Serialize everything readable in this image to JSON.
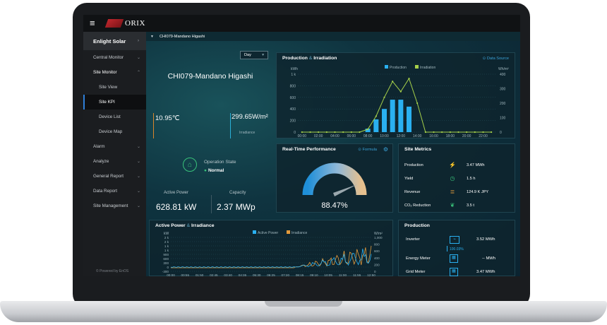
{
  "brand": {
    "name": "ORIX"
  },
  "sidebar": {
    "header": "Enlight Solar",
    "items": [
      {
        "label": "Central Monitor"
      },
      {
        "label": "Site Monitor"
      },
      {
        "label": "Site View"
      },
      {
        "label": "Site KPI"
      },
      {
        "label": "Device List"
      },
      {
        "label": "Device Map"
      },
      {
        "label": "Alarm"
      },
      {
        "label": "Analyze"
      },
      {
        "label": "General Report"
      },
      {
        "label": "Data Report"
      },
      {
        "label": "Site Management"
      }
    ],
    "footer": "© Powered by EnOS"
  },
  "breadcrumb": "CHI079-Mandano Higashi",
  "period": "Day",
  "site": {
    "name": "CHI079-Mandano Higashi",
    "temperature": "10.95℃",
    "irradiance": "299.65W/m²",
    "irradiance_label": "Irradiance",
    "operation_label": "Operation State",
    "operation_status": "Normal",
    "active_power_label": "Active Power",
    "active_power": "628.81 kW",
    "capacity_label": "Capacity",
    "capacity": "2.37 MWp"
  },
  "production_irradiation": {
    "title": "Production",
    "amp": "&",
    "title2": "Irradiation",
    "link": "⊙ Data Source",
    "legend": [
      "Production",
      "Irradiation"
    ],
    "y_left_unit": "kWh",
    "y_right_unit": "Wh/m²",
    "y_left_ticks": [
      "1 k",
      "800",
      "600",
      "400",
      "200",
      "0"
    ],
    "y_right_ticks": [
      "400",
      "300",
      "200",
      "100",
      "0"
    ],
    "x_ticks": [
      "00:00",
      "02:00",
      "04:00",
      "06:00",
      "08:00",
      "10:00",
      "12:00",
      "14:00",
      "16:00",
      "18:00",
      "20:00",
      "22:00"
    ]
  },
  "realtime": {
    "title": "Real-Time Performance",
    "link": "⊙ Formula",
    "value": "88.47%"
  },
  "site_metrics": {
    "title": "Site Metrics",
    "rows": [
      {
        "label": "Production",
        "value": "3.47 MWh",
        "icon": "lightning-icon",
        "color": "#2ab0f0"
      },
      {
        "label": "Yield",
        "value": "1.5 h",
        "icon": "clock-icon",
        "color": "#39c27a"
      },
      {
        "label": "Revenue",
        "value": "124.9 K JPY",
        "icon": "coins-icon",
        "color": "#e39a3b"
      },
      {
        "label": "CO₂ Reduction",
        "value": "3.5 t",
        "icon": "leaf-icon",
        "color": "#39c27a"
      }
    ]
  },
  "active_power_chart": {
    "title": "Active Power",
    "amp": "&",
    "title2": "Irradiance",
    "legend": [
      "Active Power",
      "Irradiance"
    ],
    "y_left_unit": "kW",
    "y_right_unit": "W/m²",
    "y_left_ticks": [
      "2 k",
      "2 k",
      "1 k",
      "1 k",
      "900",
      "600",
      "300",
      "0",
      "-300"
    ],
    "y_right_ticks": [
      "1,000",
      "800",
      "600",
      "400",
      "200",
      "0"
    ],
    "x_ticks": [
      "00:00",
      "00:55",
      "01:50",
      "02:45",
      "03:40",
      "04:35",
      "05:30",
      "06:25",
      "07:20",
      "08:15",
      "09:10",
      "10:05",
      "11:00",
      "11:55",
      "12:50"
    ]
  },
  "production_panel": {
    "title": "Production",
    "rows": [
      {
        "label": "Inverter",
        "value": "3.52 MWh",
        "icon": "inverter-icon"
      },
      {
        "label": "Energy Meter",
        "value": "-- MWh",
        "icon": "meter-icon"
      },
      {
        "label": "Grid Meter",
        "value": "3.47 MWh",
        "icon": "meter-icon"
      }
    ],
    "ratio": "100.03%"
  },
  "colors": {
    "production": "#2ab0f0",
    "irradiation": "#a6d04a",
    "irradiance": "#e39a3b",
    "active_power": "#2ab0f0"
  },
  "chart_data": [
    {
      "type": "bar",
      "title": "Production & Irradiation",
      "categories": [
        "00:00",
        "01:00",
        "02:00",
        "03:00",
        "04:00",
        "05:00",
        "06:00",
        "07:00",
        "08:00",
        "09:00",
        "10:00",
        "11:00",
        "12:00",
        "13:00",
        "14:00",
        "15:00",
        "16:00",
        "17:00",
        "18:00",
        "19:00",
        "20:00",
        "21:00",
        "22:00",
        "23:00"
      ],
      "series": [
        {
          "name": "Production",
          "type": "bar",
          "axis": "left",
          "values": [
            0,
            0,
            0,
            0,
            0,
            0,
            0,
            0,
            60,
            220,
            400,
            560,
            560,
            440,
            0,
            0,
            0,
            0,
            0,
            0,
            0,
            0,
            0,
            0
          ]
        },
        {
          "name": "Irradiation",
          "type": "line",
          "axis": "right",
          "values": [
            0,
            0,
            0,
            0,
            0,
            0,
            0,
            0,
            20,
            110,
            240,
            350,
            280,
            370,
            200,
            0,
            0,
            0,
            0,
            0,
            0,
            0,
            0,
            0
          ]
        }
      ],
      "ylabel": "kWh",
      "y2label": "Wh/m²",
      "ylim": [
        0,
        1000
      ],
      "y2lim": [
        0,
        400
      ]
    },
    {
      "type": "line",
      "title": "Active Power & Irradiance",
      "series": [
        {
          "name": "Active Power",
          "axis": "left"
        },
        {
          "name": "Irradiance",
          "axis": "right"
        }
      ],
      "ylabel": "kW",
      "y2label": "W/m²",
      "ylim": [
        -300,
        2000
      ],
      "y2lim": [
        0,
        1000
      ]
    }
  ]
}
